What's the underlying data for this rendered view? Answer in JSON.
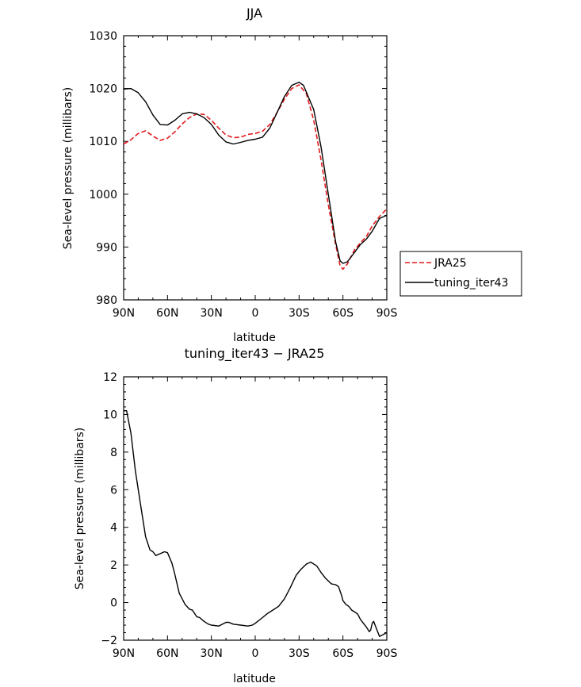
{
  "chart_data": [
    {
      "type": "line",
      "title": "JJA",
      "xlabel": "latitude",
      "ylabel": "Sea-level pressure (millibars)",
      "xlim": [
        90,
        -90
      ],
      "ylim": [
        980,
        1030
      ],
      "x_ticks": [
        90,
        60,
        30,
        0,
        -30,
        -60,
        -90
      ],
      "x_tick_labels": [
        "90N",
        "60N",
        "30N",
        "0",
        "30S",
        "60S",
        "90S"
      ],
      "y_ticks": [
        980,
        990,
        1000,
        1010,
        1020,
        1030
      ],
      "y_tick_labels": [
        "980",
        "990",
        "1000",
        "1010",
        "1020",
        "1030"
      ],
      "legend": "right",
      "series": [
        {
          "name": "JRA25",
          "color": "#e31a1c",
          "dash": "dashed",
          "points": [
            [
              90,
              1009.5
            ],
            [
              85,
              1010.3
            ],
            [
              80,
              1011.5
            ],
            [
              75,
              1012.0
            ],
            [
              70,
              1011.0
            ],
            [
              65,
              1010.2
            ],
            [
              60,
              1010.6
            ],
            [
              55,
              1011.8
            ],
            [
              50,
              1013.3
            ],
            [
              45,
              1014.5
            ],
            [
              40,
              1015.2
            ],
            [
              35,
              1015.1
            ],
            [
              30,
              1014.0
            ],
            [
              25,
              1012.5
            ],
            [
              20,
              1011.2
            ],
            [
              15,
              1010.7
            ],
            [
              10,
              1010.8
            ],
            [
              5,
              1011.3
            ],
            [
              0,
              1011.5
            ],
            [
              -5,
              1011.9
            ],
            [
              -10,
              1013.2
            ],
            [
              -15,
              1015.5
            ],
            [
              -20,
              1018.0
            ],
            [
              -25,
              1020.0
            ],
            [
              -30,
              1020.7
            ],
            [
              -35,
              1019.0
            ],
            [
              -40,
              1014.0
            ],
            [
              -45,
              1006.5
            ],
            [
              -50,
              998.0
            ],
            [
              -55,
              990.5
            ],
            [
              -58,
              986.5
            ],
            [
              -60,
              985.8
            ],
            [
              -63,
              986.8
            ],
            [
              -68,
              989.5
            ],
            [
              -72,
              990.8
            ],
            [
              -76,
              992.0
            ],
            [
              -80,
              994.0
            ],
            [
              -85,
              995.8
            ],
            [
              -90,
              997.2
            ]
          ]
        },
        {
          "name": "tuning_iter43",
          "color": "#000000",
          "dash": "solid",
          "points": [
            [
              90,
              1019.9
            ],
            [
              85,
              1020.0
            ],
            [
              80,
              1019.2
            ],
            [
              75,
              1017.5
            ],
            [
              70,
              1015.0
            ],
            [
              65,
              1013.2
            ],
            [
              60,
              1013.1
            ],
            [
              55,
              1014.0
            ],
            [
              50,
              1015.2
            ],
            [
              45,
              1015.5
            ],
            [
              40,
              1015.2
            ],
            [
              35,
              1014.5
            ],
            [
              30,
              1013.2
            ],
            [
              25,
              1011.2
            ],
            [
              20,
              1009.9
            ],
            [
              15,
              1009.5
            ],
            [
              10,
              1009.8
            ],
            [
              5,
              1010.2
            ],
            [
              0,
              1010.4
            ],
            [
              -5,
              1010.8
            ],
            [
              -10,
              1012.5
            ],
            [
              -15,
              1015.5
            ],
            [
              -20,
              1018.5
            ],
            [
              -25,
              1020.6
            ],
            [
              -30,
              1021.2
            ],
            [
              -33,
              1020.6
            ],
            [
              -40,
              1016.0
            ],
            [
              -45,
              1009.0
            ],
            [
              -50,
              1000.0
            ],
            [
              -55,
              991.0
            ],
            [
              -58,
              987.4
            ],
            [
              -60,
              986.9
            ],
            [
              -63,
              987.2
            ],
            [
              -68,
              989.0
            ],
            [
              -72,
              990.5
            ],
            [
              -76,
              991.5
            ],
            [
              -80,
              993.0
            ],
            [
              -85,
              995.4
            ],
            [
              -90,
              996.0
            ]
          ]
        }
      ]
    },
    {
      "type": "line",
      "title": "tuning_iter43 − JRA25",
      "xlabel": "latitude",
      "ylabel": "Sea-level pressure (millibars)",
      "xlim": [
        90,
        -90
      ],
      "ylim": [
        -2,
        12
      ],
      "x_ticks": [
        90,
        60,
        30,
        0,
        -30,
        -60,
        -90
      ],
      "x_tick_labels": [
        "90N",
        "60N",
        "30N",
        "0",
        "30S",
        "60S",
        "90S"
      ],
      "y_ticks": [
        -2,
        0,
        2,
        4,
        6,
        8,
        10,
        12
      ],
      "y_tick_labels": [
        "−2",
        "0",
        "2",
        "4",
        "6",
        "8",
        "10",
        "12"
      ],
      "series": [
        {
          "color": "#000000",
          "dash": "solid",
          "points": [
            [
              90,
              10.2
            ],
            [
              88,
              10.2
            ],
            [
              85,
              9.0
            ],
            [
              82,
              7.0
            ],
            [
              78,
              5.0
            ],
            [
              75,
              3.5
            ],
            [
              72,
              2.8
            ],
            [
              70,
              2.7
            ],
            [
              68,
              2.5
            ],
            [
              65,
              2.6
            ],
            [
              62,
              2.7
            ],
            [
              60,
              2.65
            ],
            [
              57,
              2.1
            ],
            [
              55,
              1.5
            ],
            [
              52,
              0.5
            ],
            [
              48,
              -0.1
            ],
            [
              45,
              -0.35
            ],
            [
              43,
              -0.4
            ],
            [
              40,
              -0.75
            ],
            [
              38,
              -0.8
            ],
            [
              35,
              -1.0
            ],
            [
              32,
              -1.15
            ],
            [
              30,
              -1.2
            ],
            [
              25,
              -1.25
            ],
            [
              20,
              -1.05
            ],
            [
              18,
              -1.05
            ],
            [
              15,
              -1.15
            ],
            [
              10,
              -1.2
            ],
            [
              5,
              -1.25
            ],
            [
              2,
              -1.2
            ],
            [
              0,
              -1.1
            ],
            [
              -5,
              -0.8
            ],
            [
              -8,
              -0.6
            ],
            [
              -12,
              -0.4
            ],
            [
              -16,
              -0.2
            ],
            [
              -20,
              0.2
            ],
            [
              -24,
              0.8
            ],
            [
              -28,
              1.45
            ],
            [
              -31,
              1.75
            ],
            [
              -35,
              2.05
            ],
            [
              -38,
              2.15
            ],
            [
              -42,
              1.95
            ],
            [
              -45,
              1.6
            ],
            [
              -48,
              1.3
            ],
            [
              -50,
              1.15
            ],
            [
              -52,
              1.0
            ],
            [
              -55,
              0.95
            ],
            [
              -57,
              0.85
            ],
            [
              -59,
              0.4
            ],
            [
              -60,
              0.1
            ],
            [
              -62,
              -0.1
            ],
            [
              -64,
              -0.2
            ],
            [
              -66,
              -0.4
            ],
            [
              -68,
              -0.5
            ],
            [
              -70,
              -0.6
            ],
            [
              -72,
              -0.9
            ],
            [
              -74,
              -1.1
            ],
            [
              -76,
              -1.3
            ],
            [
              -78,
              -1.55
            ],
            [
              -79,
              -1.45
            ],
            [
              -80,
              -1.1
            ],
            [
              -81,
              -1.0
            ],
            [
              -82,
              -1.2
            ],
            [
              -84,
              -1.6
            ],
            [
              -85,
              -1.8
            ],
            [
              -90,
              -1.6
            ]
          ]
        }
      ]
    }
  ]
}
